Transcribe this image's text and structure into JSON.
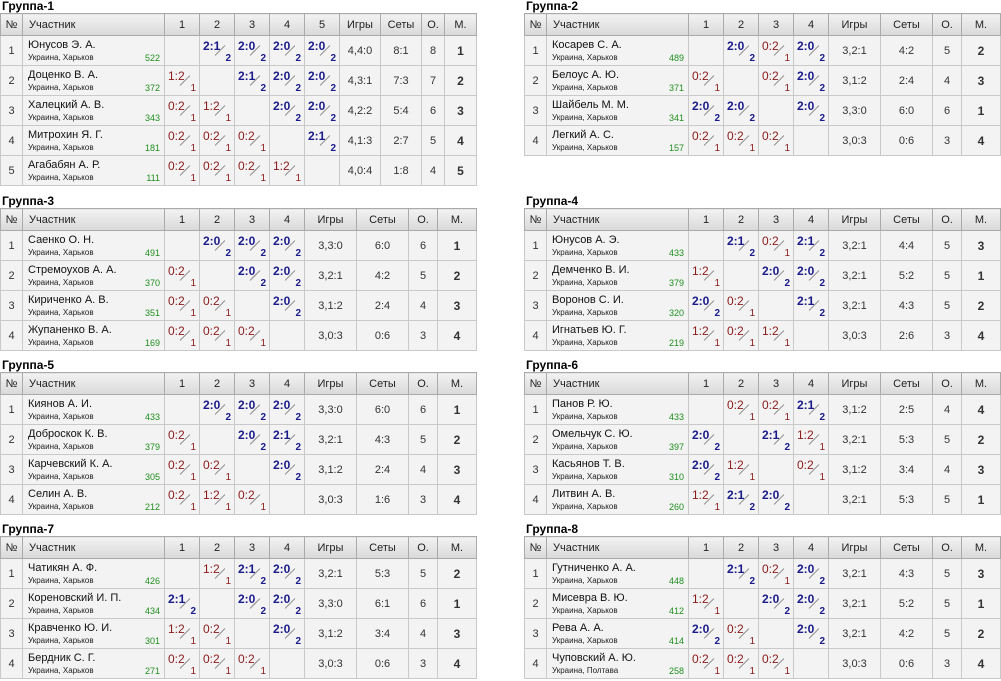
{
  "headers": {
    "num": "№",
    "participant": "Участник",
    "games": "Игры",
    "sets": "Сеты",
    "points": "О.",
    "place": "М."
  },
  "groups": [
    {
      "title": "Группа-1",
      "cols": [
        "1",
        "2",
        "3",
        "4",
        "5"
      ],
      "players": [
        {
          "num": "1",
          "name": "Юнусов Э. А.",
          "city": "Украина, Харьков",
          "rating": "522",
          "games": "4,4:0",
          "sets": "8:1",
          "points": "8",
          "place": "1",
          "results": [
            null,
            "2:1",
            "2:0",
            "2:0",
            "2:0"
          ]
        },
        {
          "num": "2",
          "name": "Доценко В. А.",
          "city": "Украина, Харьков",
          "rating": "372",
          "games": "4,3:1",
          "sets": "7:3",
          "points": "7",
          "place": "2",
          "results": [
            "1:2",
            null,
            "2:1",
            "2:0",
            "2:0"
          ]
        },
        {
          "num": "3",
          "name": "Халецкий А. В.",
          "city": "Украина, Харьков",
          "rating": "343",
          "games": "4,2:2",
          "sets": "5:4",
          "points": "6",
          "place": "3",
          "results": [
            "0:2",
            "1:2",
            null,
            "2:0",
            "2:0"
          ]
        },
        {
          "num": "4",
          "name": "Митрохин Я. Г.",
          "city": "Украина, Харьков",
          "rating": "181",
          "games": "4,1:3",
          "sets": "2:7",
          "points": "5",
          "place": "4",
          "results": [
            "0:2",
            "0:2",
            "0:2",
            null,
            "2:1"
          ]
        },
        {
          "num": "5",
          "name": "Агабабян А. Р.",
          "city": "Украина, Харьков",
          "rating": "111",
          "games": "4,0:4",
          "sets": "1:8",
          "points": "4",
          "place": "5",
          "results": [
            "0:2",
            "0:2",
            "0:2",
            "1:2",
            null
          ]
        }
      ]
    },
    {
      "title": "Группа-2",
      "cols": [
        "1",
        "2",
        "3",
        "4"
      ],
      "players": [
        {
          "num": "1",
          "name": "Косарев С. А.",
          "city": "Украина, Харьков",
          "rating": "489",
          "games": "3,2:1",
          "sets": "4:2",
          "points": "5",
          "place": "2",
          "results": [
            null,
            "2:0",
            "0:2",
            "2:0"
          ]
        },
        {
          "num": "2",
          "name": "Белоус А. Ю.",
          "city": "Украина, Харьков",
          "rating": "371",
          "games": "3,1:2",
          "sets": "2:4",
          "points": "4",
          "place": "3",
          "results": [
            "0:2",
            null,
            "0:2",
            "2:0"
          ]
        },
        {
          "num": "3",
          "name": "Шайбель М. М.",
          "city": "Украина, Харьков",
          "rating": "341",
          "games": "3,3:0",
          "sets": "6:0",
          "points": "6",
          "place": "1",
          "results": [
            "2:0",
            "2:0",
            null,
            "2:0"
          ]
        },
        {
          "num": "4",
          "name": "Легкий А. С.",
          "city": "Украина, Харьков",
          "rating": "157",
          "games": "3,0:3",
          "sets": "0:6",
          "points": "3",
          "place": "4",
          "results": [
            "0:2",
            "0:2",
            "0:2",
            null
          ]
        }
      ]
    },
    {
      "title": "Группа-3",
      "cols": [
        "1",
        "2",
        "3",
        "4"
      ],
      "players": [
        {
          "num": "1",
          "name": "Саенко О. Н.",
          "city": "Украина, Харьков",
          "rating": "491",
          "games": "3,3:0",
          "sets": "6:0",
          "points": "6",
          "place": "1",
          "results": [
            null,
            "2:0",
            "2:0",
            "2:0"
          ]
        },
        {
          "num": "2",
          "name": "Стремоухов А. А.",
          "city": "Украина, Харьков",
          "rating": "370",
          "games": "3,2:1",
          "sets": "4:2",
          "points": "5",
          "place": "2",
          "results": [
            "0:2",
            null,
            "2:0",
            "2:0"
          ]
        },
        {
          "num": "3",
          "name": "Кириченко А. В.",
          "city": "Украина, Харьков",
          "rating": "351",
          "games": "3,1:2",
          "sets": "2:4",
          "points": "4",
          "place": "3",
          "results": [
            "0:2",
            "0:2",
            null,
            "2:0"
          ]
        },
        {
          "num": "4",
          "name": "Жупаненко В. А.",
          "city": "Украина, Харьков",
          "rating": "169",
          "games": "3,0:3",
          "sets": "0:6",
          "points": "3",
          "place": "4",
          "results": [
            "0:2",
            "0:2",
            "0:2",
            null
          ]
        }
      ]
    },
    {
      "title": "Группа-4",
      "cols": [
        "1",
        "2",
        "3",
        "4"
      ],
      "players": [
        {
          "num": "1",
          "name": "Юнусов А. Э.",
          "city": "Украина, Харьков",
          "rating": "433",
          "games": "3,2:1",
          "sets": "4:4",
          "points": "5",
          "place": "3",
          "results": [
            null,
            "2:1",
            "0:2",
            "2:1"
          ]
        },
        {
          "num": "2",
          "name": "Демченко В. И.",
          "city": "Украина, Харьков",
          "rating": "379",
          "games": "3,2:1",
          "sets": "5:2",
          "points": "5",
          "place": "1",
          "results": [
            "1:2",
            null,
            "2:0",
            "2:0"
          ]
        },
        {
          "num": "3",
          "name": "Воронов С. И.",
          "city": "Украина, Харьков",
          "rating": "320",
          "games": "3,2:1",
          "sets": "4:3",
          "points": "5",
          "place": "2",
          "results": [
            "2:0",
            "0:2",
            null,
            "2:1"
          ]
        },
        {
          "num": "4",
          "name": "Игнатьев Ю. Г.",
          "city": "Украина, Харьков",
          "rating": "219",
          "games": "3,0:3",
          "sets": "2:6",
          "points": "3",
          "place": "4",
          "results": [
            "1:2",
            "0:2",
            "1:2",
            null
          ]
        }
      ]
    },
    {
      "title": "Группа-5",
      "cols": [
        "1",
        "2",
        "3",
        "4"
      ],
      "players": [
        {
          "num": "1",
          "name": "Киянов А. И.",
          "city": "Украина, Харьков",
          "rating": "433",
          "games": "3,3:0",
          "sets": "6:0",
          "points": "6",
          "place": "1",
          "results": [
            null,
            "2:0",
            "2:0",
            "2:0"
          ]
        },
        {
          "num": "2",
          "name": "Доброскок К. В.",
          "city": "Украина, Харьков",
          "rating": "379",
          "games": "3,2:1",
          "sets": "4:3",
          "points": "5",
          "place": "2",
          "results": [
            "0:2",
            null,
            "2:0",
            "2:1"
          ]
        },
        {
          "num": "3",
          "name": "Карчевский К. А.",
          "city": "Украина, Харьков",
          "rating": "305",
          "games": "3,1:2",
          "sets": "2:4",
          "points": "4",
          "place": "3",
          "results": [
            "0:2",
            "0:2",
            null,
            "2:0"
          ]
        },
        {
          "num": "4",
          "name": "Селин А. В.",
          "city": "Украина, Харьков",
          "rating": "212",
          "games": "3,0:3",
          "sets": "1:6",
          "points": "3",
          "place": "4",
          "results": [
            "0:2",
            "1:2",
            "0:2",
            null
          ]
        }
      ]
    },
    {
      "title": "Группа-6",
      "cols": [
        "1",
        "2",
        "3",
        "4"
      ],
      "players": [
        {
          "num": "1",
          "name": "Панов Р. Ю.",
          "city": "Украина, Харьков",
          "rating": "433",
          "games": "3,1:2",
          "sets": "2:5",
          "points": "4",
          "place": "4",
          "results": [
            null,
            "0:2",
            "0:2",
            "2:1"
          ]
        },
        {
          "num": "2",
          "name": "Омельчук С. Ю.",
          "city": "Украина, Харьков",
          "rating": "397",
          "games": "3,2:1",
          "sets": "5:3",
          "points": "5",
          "place": "2",
          "results": [
            "2:0",
            null,
            "2:1",
            "1:2"
          ]
        },
        {
          "num": "3",
          "name": "Касьянов Т. В.",
          "city": "Украина, Харьков",
          "rating": "310",
          "games": "3,1:2",
          "sets": "3:4",
          "points": "4",
          "place": "3",
          "results": [
            "2:0",
            "1:2",
            null,
            "0:2"
          ]
        },
        {
          "num": "4",
          "name": "Литвин А. В.",
          "city": "Украина, Харьков",
          "rating": "260",
          "games": "3,2:1",
          "sets": "5:3",
          "points": "5",
          "place": "1",
          "results": [
            "1:2",
            "2:1",
            "2:0",
            null
          ]
        }
      ]
    },
    {
      "title": "Группа-7",
      "cols": [
        "1",
        "2",
        "3",
        "4"
      ],
      "players": [
        {
          "num": "1",
          "name": "Чатикян А. Ф.",
          "city": "Украина, Харьков",
          "rating": "426",
          "games": "3,2:1",
          "sets": "5:3",
          "points": "5",
          "place": "2",
          "results": [
            null,
            "1:2",
            "2:1",
            "2:0"
          ]
        },
        {
          "num": "2",
          "name": "Кореновский И. П.",
          "city": "Украина, Харьков",
          "rating": "434",
          "games": "3,3:0",
          "sets": "6:1",
          "points": "6",
          "place": "1",
          "results": [
            "2:1",
            null,
            "2:0",
            "2:0"
          ]
        },
        {
          "num": "3",
          "name": "Кравченко Ю. И.",
          "city": "Украина, Харьков",
          "rating": "301",
          "games": "3,1:2",
          "sets": "3:4",
          "points": "4",
          "place": "3",
          "results": [
            "1:2",
            "0:2",
            null,
            "2:0"
          ]
        },
        {
          "num": "4",
          "name": "Бердник С. Г.",
          "city": "Украина, Харьков",
          "rating": "271",
          "games": "3,0:3",
          "sets": "0:6",
          "points": "3",
          "place": "4",
          "results": [
            "0:2",
            "0:2",
            "0:2",
            null
          ]
        }
      ]
    },
    {
      "title": "Группа-8",
      "cols": [
        "1",
        "2",
        "3",
        "4"
      ],
      "players": [
        {
          "num": "1",
          "name": "Гутниченко А. А.",
          "city": "Украина, Харьков",
          "rating": "448",
          "games": "3,2:1",
          "sets": "4:3",
          "points": "5",
          "place": "3",
          "results": [
            null,
            "2:1",
            "0:2",
            "2:0"
          ]
        },
        {
          "num": "2",
          "name": "Мисевра В. Ю.",
          "city": "Украина, Харьков",
          "rating": "412",
          "games": "3,2:1",
          "sets": "5:2",
          "points": "5",
          "place": "1",
          "results": [
            "1:2",
            null,
            "2:0",
            "2:0"
          ]
        },
        {
          "num": "3",
          "name": "Рева А. А.",
          "city": "Украина, Харьков",
          "rating": "414",
          "games": "3,2:1",
          "sets": "4:2",
          "points": "5",
          "place": "2",
          "results": [
            "2:0",
            "0:2",
            null,
            "2:0"
          ]
        },
        {
          "num": "4",
          "name": "Чуповский А. Ю.",
          "city": "Украина, Полтава",
          "rating": "258",
          "games": "3,0:3",
          "sets": "0:6",
          "points": "3",
          "place": "4",
          "results": [
            "0:2",
            "0:2",
            "0:2",
            null
          ]
        }
      ]
    }
  ]
}
